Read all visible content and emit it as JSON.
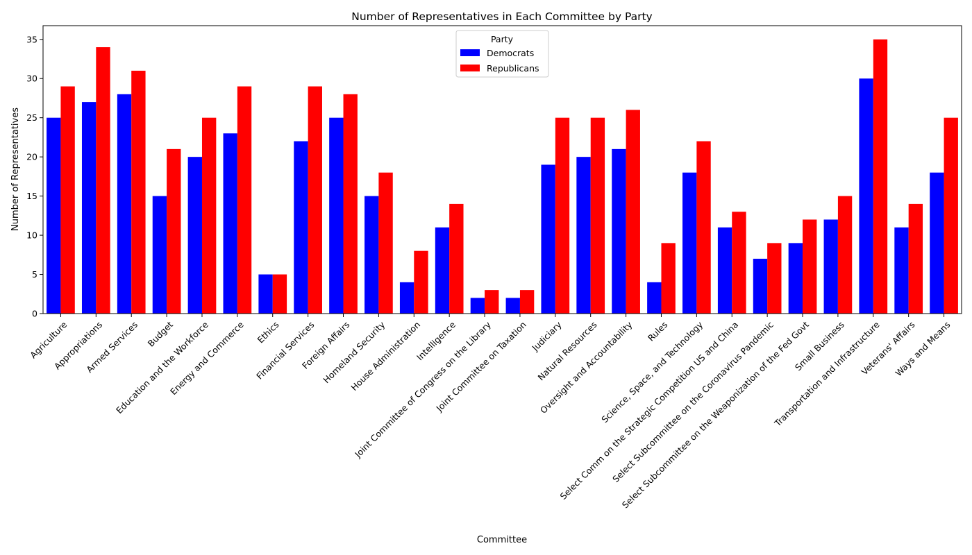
{
  "chart_data": {
    "type": "bar",
    "title": "Number of Representatives in Each Committee by Party",
    "xlabel": "Committee",
    "ylabel": "Number of Representatives",
    "ylim": [
      0,
      36.75
    ],
    "yticks": [
      0,
      5,
      10,
      15,
      20,
      25,
      30,
      35
    ],
    "grid": false,
    "legend": {
      "title": "Party",
      "placement": "top-center"
    },
    "categories": [
      "Agriculture",
      "Appropriations",
      "Armed Services",
      "Budget",
      "Education and the Workforce",
      "Energy and Commerce",
      "Ethics",
      "Financial Services",
      "Foreign Affairs",
      "Homeland Security",
      "House Administration",
      "Intelligence",
      "Joint Committee of Congress on the Library",
      "Joint Committee on Taxation",
      "Judiciary",
      "Natural Resources",
      "Oversight and Accountability",
      "Rules",
      "Science, Space, and Technology",
      "Select Comm on the Strategic Competition US and China",
      "Select Subcommittee on the Coronavirus Pandemic",
      "Select Subcommittee on the Weaponization of the Fed Govt",
      "Small Business",
      "Transportation and Infrastructure",
      "Veterans' Affairs",
      "Ways and Means"
    ],
    "series": [
      {
        "name": "Democrats",
        "color": "#0000ff",
        "values": [
          25,
          27,
          28,
          15,
          20,
          23,
          5,
          22,
          25,
          15,
          4,
          11,
          2,
          2,
          19,
          20,
          21,
          4,
          18,
          11,
          7,
          9,
          12,
          30,
          11,
          18
        ]
      },
      {
        "name": "Republicans",
        "color": "#ff0000",
        "values": [
          29,
          34,
          31,
          21,
          25,
          29,
          5,
          29,
          28,
          18,
          8,
          14,
          3,
          3,
          25,
          25,
          26,
          9,
          22,
          13,
          9,
          12,
          15,
          35,
          14,
          25
        ]
      }
    ]
  }
}
